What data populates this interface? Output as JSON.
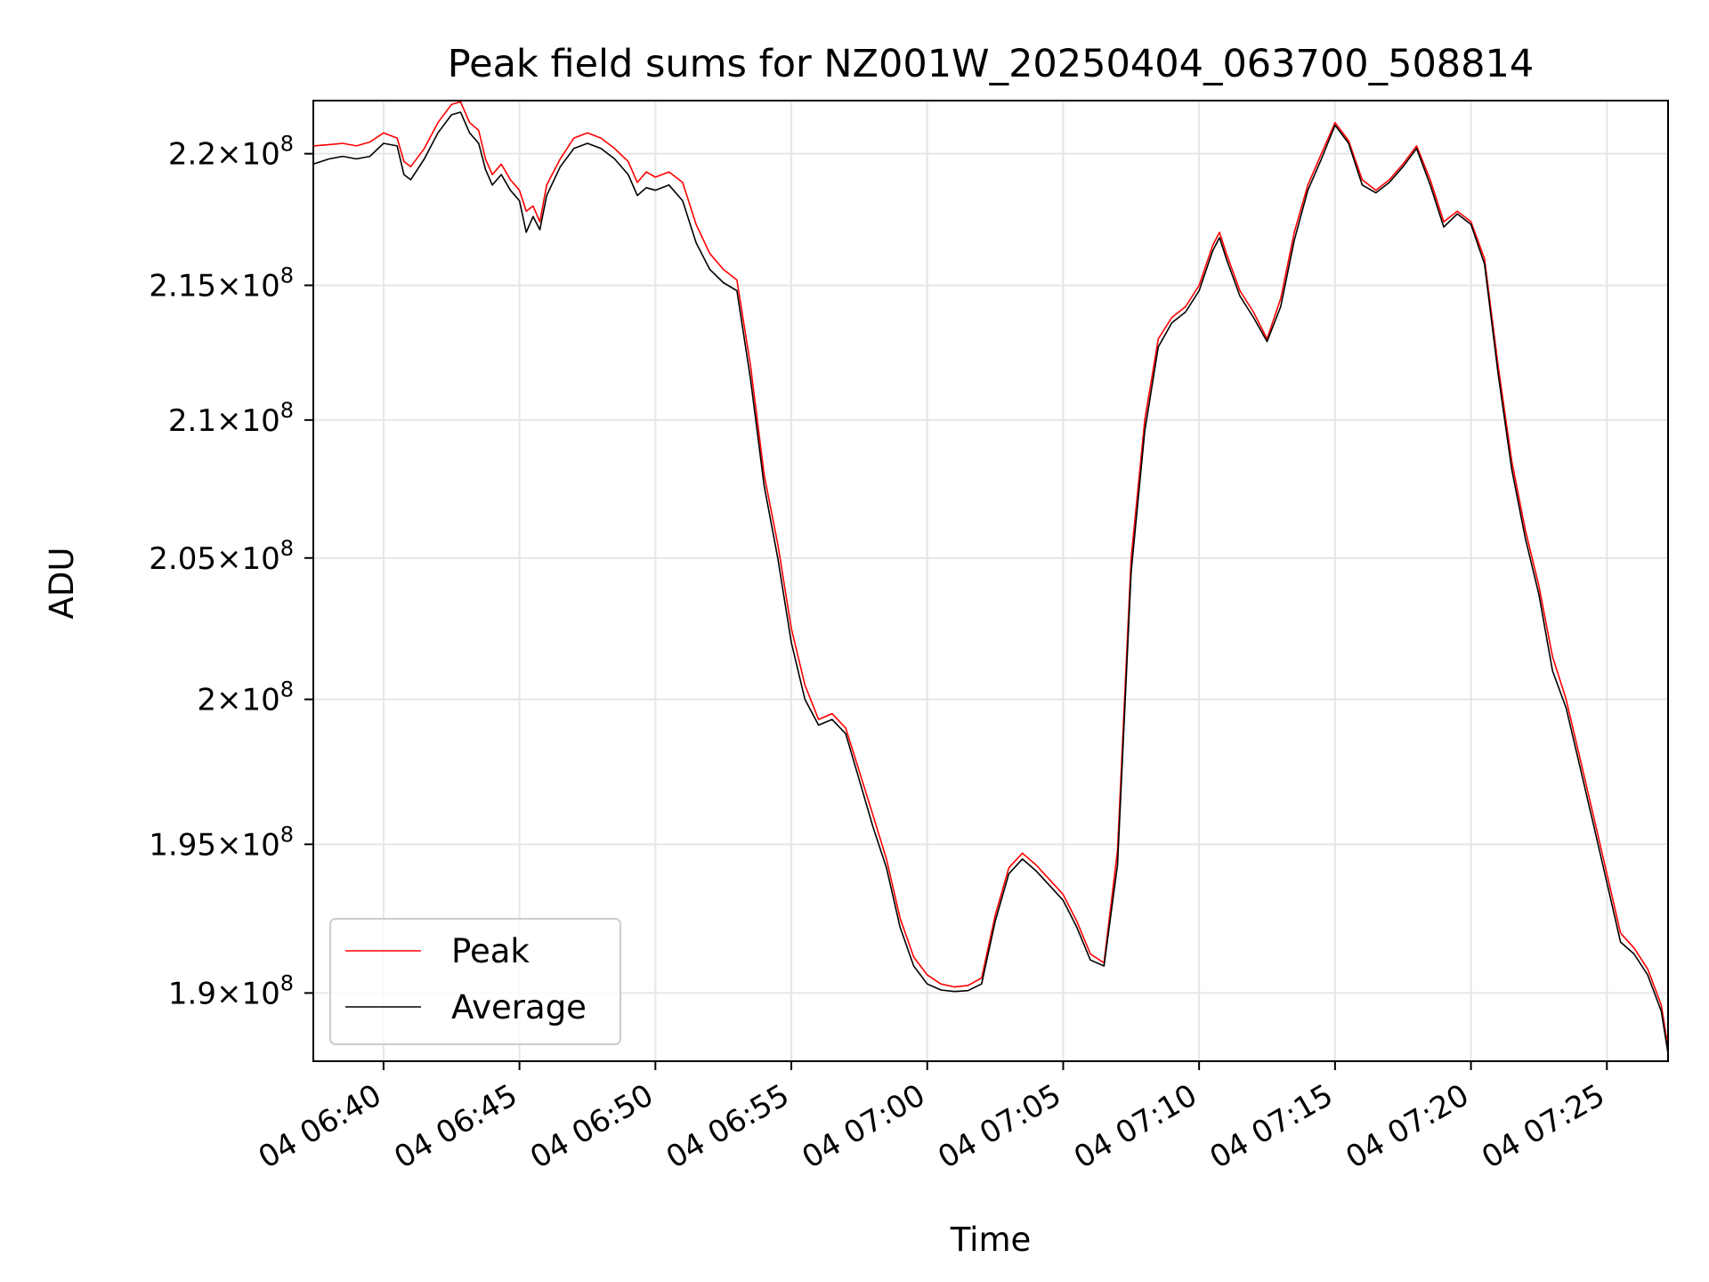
{
  "chart_data": {
    "type": "line",
    "title": "Peak field sums for NZ001W_20250404_063700_508814",
    "xlabel": "Time",
    "ylabel": "ADU",
    "y_scale": "log",
    "y_unit_exponent": 8,
    "xlim": [
      "2025-04-04 06:37:25",
      "2025-04-04 07:27:15"
    ],
    "ylim": [
      187750000.0,
      222050000.0
    ],
    "x_ticks": [
      {
        "value": "2025-04-04 06:40",
        "label": "04 06:40"
      },
      {
        "value": "2025-04-04 06:45",
        "label": "04 06:45"
      },
      {
        "value": "2025-04-04 06:50",
        "label": "04 06:50"
      },
      {
        "value": "2025-04-04 06:55",
        "label": "04 06:55"
      },
      {
        "value": "2025-04-04 07:00",
        "label": "04 07:00"
      },
      {
        "value": "2025-04-04 07:05",
        "label": "04 07:05"
      },
      {
        "value": "2025-04-04 07:10",
        "label": "04 07:10"
      },
      {
        "value": "2025-04-04 07:15",
        "label": "04 07:15"
      },
      {
        "value": "2025-04-04 07:20",
        "label": "04 07:20"
      },
      {
        "value": "2025-04-04 07:25",
        "label": "04 07:25"
      }
    ],
    "y_ticks": [
      {
        "value": 190000000.0,
        "mantissa": "1.9"
      },
      {
        "value": 195000000.0,
        "mantissa": "1.95"
      },
      {
        "value": 200000000.0,
        "mantissa": "2"
      },
      {
        "value": 205000000.0,
        "mantissa": "2.05"
      },
      {
        "value": 210000000.0,
        "mantissa": "2.1"
      },
      {
        "value": 215000000.0,
        "mantissa": "2.15"
      },
      {
        "value": 220000000.0,
        "mantissa": "2.2"
      }
    ],
    "grid": true,
    "legend_position": "lower-left",
    "series": [
      {
        "name": "Peak",
        "color": "#ff0000",
        "points": [
          [
            "06:37:25",
            220300000.0
          ],
          [
            "06:38:00",
            220350000.0
          ],
          [
            "06:38:30",
            220400000.0
          ],
          [
            "06:39:00",
            220300000.0
          ],
          [
            "06:39:30",
            220450000.0
          ],
          [
            "06:40:00",
            220800000.0
          ],
          [
            "06:40:30",
            220600000.0
          ],
          [
            "06:40:45",
            219700000.0
          ],
          [
            "06:41:00",
            219500000.0
          ],
          [
            "06:41:30",
            220200000.0
          ],
          [
            "06:42:00",
            221200000.0
          ],
          [
            "06:42:30",
            221900000.0
          ],
          [
            "06:42:50",
            222000000.0
          ],
          [
            "06:43:10",
            221200000.0
          ],
          [
            "06:43:30",
            220900000.0
          ],
          [
            "06:43:45",
            219800000.0
          ],
          [
            "06:44:00",
            219200000.0
          ],
          [
            "06:44:20",
            219600000.0
          ],
          [
            "06:44:40",
            219000000.0
          ],
          [
            "06:45:00",
            218600000.0
          ],
          [
            "06:45:15",
            217800000.0
          ],
          [
            "06:45:30",
            218000000.0
          ],
          [
            "06:45:45",
            217400000.0
          ],
          [
            "06:46:00",
            218800000.0
          ],
          [
            "06:46:30",
            219800000.0
          ],
          [
            "06:47:00",
            220600000.0
          ],
          [
            "06:47:30",
            220800000.0
          ],
          [
            "06:48:00",
            220600000.0
          ],
          [
            "06:48:30",
            220200000.0
          ],
          [
            "06:49:00",
            219700000.0
          ],
          [
            "06:49:20",
            218900000.0
          ],
          [
            "06:49:40",
            219300000.0
          ],
          [
            "06:50:00",
            219100000.0
          ],
          [
            "06:50:30",
            219300000.0
          ],
          [
            "06:51:00",
            218900000.0
          ],
          [
            "06:51:30",
            217300000.0
          ],
          [
            "06:52:00",
            216200000.0
          ],
          [
            "06:52:30",
            215600000.0
          ],
          [
            "06:53:00",
            215200000.0
          ],
          [
            "06:53:30",
            212000000.0
          ],
          [
            "06:54:00",
            208000000.0
          ],
          [
            "06:54:30",
            205500000.0
          ],
          [
            "06:55:00",
            202500000.0
          ],
          [
            "06:55:30",
            200500000.0
          ],
          [
            "06:56:00",
            199300000.0
          ],
          [
            "06:56:30",
            199500000.0
          ],
          [
            "06:57:00",
            199000000.0
          ],
          [
            "06:57:30",
            197500000.0
          ],
          [
            "06:58:00",
            196000000.0
          ],
          [
            "06:58:30",
            194500000.0
          ],
          [
            "06:59:00",
            192500000.0
          ],
          [
            "06:59:30",
            191200000.0
          ],
          [
            "07:00:00",
            190600000.0
          ],
          [
            "07:00:30",
            190300000.0
          ],
          [
            "07:01:00",
            190200000.0
          ],
          [
            "07:01:30",
            190250000.0
          ],
          [
            "07:02:00",
            190500000.0
          ],
          [
            "07:02:30",
            192600000.0
          ],
          [
            "07:03:00",
            194200000.0
          ],
          [
            "07:03:30",
            194700000.0
          ],
          [
            "07:04:00",
            194300000.0
          ],
          [
            "07:04:30",
            193800000.0
          ],
          [
            "07:05:00",
            193300000.0
          ],
          [
            "07:05:30",
            192400000.0
          ],
          [
            "07:06:00",
            191300000.0
          ],
          [
            "07:06:30",
            191000000.0
          ],
          [
            "07:07:00",
            194800000.0
          ],
          [
            "07:07:30",
            205000000.0
          ],
          [
            "07:08:00",
            210000000.0
          ],
          [
            "07:08:30",
            213000000.0
          ],
          [
            "07:09:00",
            213800000.0
          ],
          [
            "07:09:30",
            214200000.0
          ],
          [
            "07:10:00",
            215000000.0
          ],
          [
            "07:10:30",
            216500000.0
          ],
          [
            "07:10:45",
            217000000.0
          ],
          [
            "07:11:00",
            216200000.0
          ],
          [
            "07:11:30",
            214800000.0
          ],
          [
            "07:12:00",
            214000000.0
          ],
          [
            "07:12:30",
            213000000.0
          ],
          [
            "07:13:00",
            214500000.0
          ],
          [
            "07:13:30",
            217000000.0
          ],
          [
            "07:14:00",
            218800000.0
          ],
          [
            "07:14:30",
            220000000.0
          ],
          [
            "07:15:00",
            221200000.0
          ],
          [
            "07:15:30",
            220500000.0
          ],
          [
            "07:16:00",
            219000000.0
          ],
          [
            "07:16:30",
            218600000.0
          ],
          [
            "07:17:00",
            219000000.0
          ],
          [
            "07:17:30",
            219600000.0
          ],
          [
            "07:18:00",
            220300000.0
          ],
          [
            "07:18:30",
            219000000.0
          ],
          [
            "07:19:00",
            217400000.0
          ],
          [
            "07:19:30",
            217800000.0
          ],
          [
            "07:20:00",
            217400000.0
          ],
          [
            "07:20:30",
            216000000.0
          ],
          [
            "07:21:00",
            212000000.0
          ],
          [
            "07:21:30",
            208500000.0
          ],
          [
            "07:22:00",
            206000000.0
          ],
          [
            "07:22:30",
            204000000.0
          ],
          [
            "07:23:00",
            201500000.0
          ],
          [
            "07:23:30",
            200000000.0
          ],
          [
            "07:24:00",
            198000000.0
          ],
          [
            "07:24:30",
            196000000.0
          ],
          [
            "07:25:00",
            194000000.0
          ],
          [
            "07:25:30",
            192000000.0
          ],
          [
            "07:26:00",
            191500000.0
          ],
          [
            "07:26:30",
            190800000.0
          ],
          [
            "07:27:00",
            189600000.0
          ],
          [
            "07:27:15",
            188200000.0
          ]
        ]
      },
      {
        "name": "Average",
        "color": "#000000",
        "points": [
          [
            "06:37:25",
            219600000.0
          ],
          [
            "06:38:00",
            219800000.0
          ],
          [
            "06:38:30",
            219900000.0
          ],
          [
            "06:39:00",
            219800000.0
          ],
          [
            "06:39:30",
            219900000.0
          ],
          [
            "06:40:00",
            220400000.0
          ],
          [
            "06:40:30",
            220300000.0
          ],
          [
            "06:40:45",
            219200000.0
          ],
          [
            "06:41:00",
            219000000.0
          ],
          [
            "06:41:30",
            219800000.0
          ],
          [
            "06:42:00",
            220800000.0
          ],
          [
            "06:42:30",
            221500000.0
          ],
          [
            "06:42:50",
            221600000.0
          ],
          [
            "06:43:10",
            220800000.0
          ],
          [
            "06:43:30",
            220400000.0
          ],
          [
            "06:43:45",
            219400000.0
          ],
          [
            "06:44:00",
            218800000.0
          ],
          [
            "06:44:20",
            219200000.0
          ],
          [
            "06:44:40",
            218600000.0
          ],
          [
            "06:45:00",
            218200000.0
          ],
          [
            "06:45:15",
            217000000.0
          ],
          [
            "06:45:30",
            217600000.0
          ],
          [
            "06:45:45",
            217100000.0
          ],
          [
            "06:46:00",
            218400000.0
          ],
          [
            "06:46:30",
            219500000.0
          ],
          [
            "06:47:00",
            220200000.0
          ],
          [
            "06:47:30",
            220400000.0
          ],
          [
            "06:48:00",
            220200000.0
          ],
          [
            "06:48:30",
            219800000.0
          ],
          [
            "06:49:00",
            219200000.0
          ],
          [
            "06:49:20",
            218400000.0
          ],
          [
            "06:49:40",
            218700000.0
          ],
          [
            "06:50:00",
            218600000.0
          ],
          [
            "06:50:30",
            218800000.0
          ],
          [
            "06:51:00",
            218200000.0
          ],
          [
            "06:51:30",
            216600000.0
          ],
          [
            "06:52:00",
            215600000.0
          ],
          [
            "06:52:30",
            215100000.0
          ],
          [
            "06:53:00",
            214800000.0
          ],
          [
            "06:53:30",
            211500000.0
          ],
          [
            "06:54:00",
            207600000.0
          ],
          [
            "06:54:30",
            205000000.0
          ],
          [
            "06:55:00",
            202000000.0
          ],
          [
            "06:55:30",
            200000000.0
          ],
          [
            "06:56:00",
            199100000.0
          ],
          [
            "06:56:30",
            199300000.0
          ],
          [
            "06:57:00",
            198800000.0
          ],
          [
            "06:57:30",
            197200000.0
          ],
          [
            "06:58:00",
            195600000.0
          ],
          [
            "06:58:30",
            194200000.0
          ],
          [
            "06:59:00",
            192200000.0
          ],
          [
            "06:59:30",
            190900000.0
          ],
          [
            "07:00:00",
            190300000.0
          ],
          [
            "07:00:30",
            190100000.0
          ],
          [
            "07:01:00",
            190050000.0
          ],
          [
            "07:01:30",
            190080000.0
          ],
          [
            "07:02:00",
            190300000.0
          ],
          [
            "07:02:30",
            192400000.0
          ],
          [
            "07:03:00",
            194000000.0
          ],
          [
            "07:03:30",
            194500000.0
          ],
          [
            "07:04:00",
            194100000.0
          ],
          [
            "07:04:30",
            193600000.0
          ],
          [
            "07:05:00",
            193100000.0
          ],
          [
            "07:05:30",
            192200000.0
          ],
          [
            "07:06:00",
            191100000.0
          ],
          [
            "07:06:30",
            190900000.0
          ],
          [
            "07:07:00",
            194300000.0
          ],
          [
            "07:07:30",
            204500000.0
          ],
          [
            "07:08:00",
            209600000.0
          ],
          [
            "07:08:30",
            212700000.0
          ],
          [
            "07:09:00",
            213600000.0
          ],
          [
            "07:09:30",
            214000000.0
          ],
          [
            "07:10:00",
            214800000.0
          ],
          [
            "07:10:30",
            216300000.0
          ],
          [
            "07:10:45",
            216800000.0
          ],
          [
            "07:11:00",
            216000000.0
          ],
          [
            "07:11:30",
            214600000.0
          ],
          [
            "07:12:00",
            213800000.0
          ],
          [
            "07:12:30",
            212900000.0
          ],
          [
            "07:13:00",
            214200000.0
          ],
          [
            "07:13:30",
            216700000.0
          ],
          [
            "07:14:00",
            218600000.0
          ],
          [
            "07:14:30",
            219800000.0
          ],
          [
            "07:15:00",
            221100000.0
          ],
          [
            "07:15:30",
            220400000.0
          ],
          [
            "07:16:00",
            218800000.0
          ],
          [
            "07:16:30",
            218500000.0
          ],
          [
            "07:17:00",
            218900000.0
          ],
          [
            "07:17:30",
            219500000.0
          ],
          [
            "07:18:00",
            220200000.0
          ],
          [
            "07:18:30",
            218800000.0
          ],
          [
            "07:19:00",
            217200000.0
          ],
          [
            "07:19:30",
            217700000.0
          ],
          [
            "07:20:00",
            217300000.0
          ],
          [
            "07:20:30",
            215800000.0
          ],
          [
            "07:21:00",
            211700000.0
          ],
          [
            "07:21:30",
            208200000.0
          ],
          [
            "07:22:00",
            205700000.0
          ],
          [
            "07:22:30",
            203700000.0
          ],
          [
            "07:23:00",
            201000000.0
          ],
          [
            "07:23:30",
            199700000.0
          ],
          [
            "07:24:00",
            197700000.0
          ],
          [
            "07:24:30",
            195700000.0
          ],
          [
            "07:25:00",
            193700000.0
          ],
          [
            "07:25:30",
            191700000.0
          ],
          [
            "07:26:00",
            191300000.0
          ],
          [
            "07:26:30",
            190600000.0
          ],
          [
            "07:27:00",
            189400000.0
          ],
          [
            "07:27:15",
            188000000.0
          ]
        ]
      }
    ]
  }
}
